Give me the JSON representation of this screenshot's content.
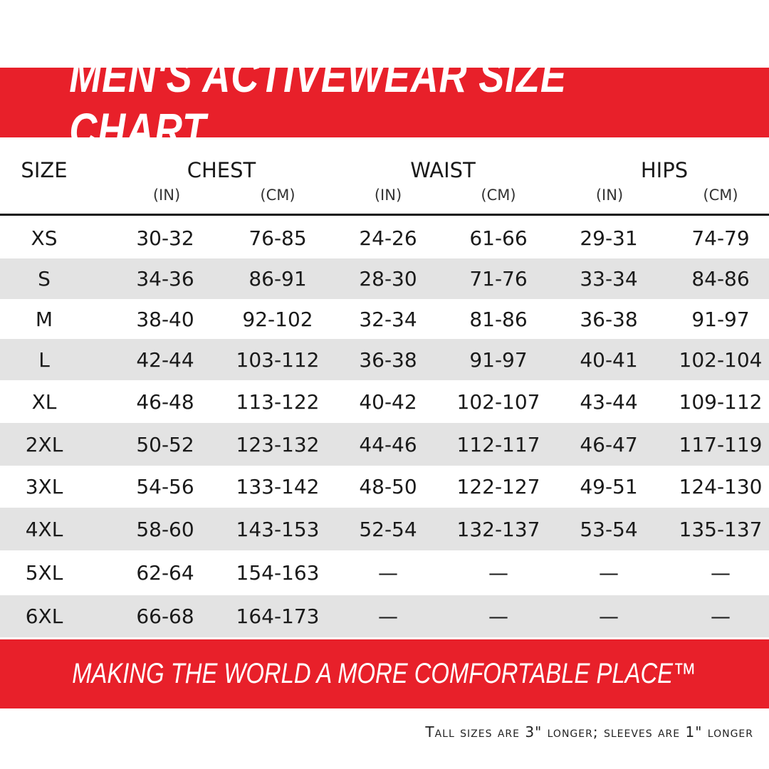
{
  "title": "MEN'S ACTIVEWEAR SIZE CHART",
  "tagline": "MAKING THE WORLD A MORE COMFORTABLE PLACE™",
  "note": "Tall sizes are 3\" longer; sleeves are 1\" longer",
  "colors": {
    "brand_red": "#e8202a",
    "row_shade": "#e3e3e3"
  },
  "chart_data": {
    "type": "table",
    "title": "MEN'S ACTIVEWEAR SIZE CHART",
    "groups": [
      "SIZE",
      "CHEST",
      "WAIST",
      "HIPS"
    ],
    "units": [
      "(IN)",
      "(CM)",
      "(IN)",
      "(CM)",
      "(IN)",
      "(CM)"
    ],
    "rows": [
      [
        "XS",
        "30-32",
        "76-85",
        "24-26",
        "61-66",
        "29-31",
        "74-79"
      ],
      [
        "S",
        "34-36",
        "86-91",
        "28-30",
        "71-76",
        "33-34",
        "84-86"
      ],
      [
        "M",
        "38-40",
        "92-102",
        "32-34",
        "81-86",
        "36-38",
        "91-97"
      ],
      [
        "L",
        "42-44",
        "103-112",
        "36-38",
        "91-97",
        "40-41",
        "102-104"
      ],
      [
        "XL",
        "46-48",
        "113-122",
        "40-42",
        "102-107",
        "43-44",
        "109-112"
      ],
      [
        "2XL",
        "50-52",
        "123-132",
        "44-46",
        "112-117",
        "46-47",
        "117-119"
      ],
      [
        "3XL",
        "54-56",
        "133-142",
        "48-50",
        "122-127",
        "49-51",
        "124-130"
      ],
      [
        "4XL",
        "58-60",
        "143-153",
        "52-54",
        "132-137",
        "53-54",
        "135-137"
      ],
      [
        "5XL",
        "62-64",
        "154-163",
        "—",
        "—",
        "—",
        "—"
      ],
      [
        "6XL",
        "66-68",
        "164-173",
        "—",
        "—",
        "—",
        "—"
      ]
    ]
  }
}
